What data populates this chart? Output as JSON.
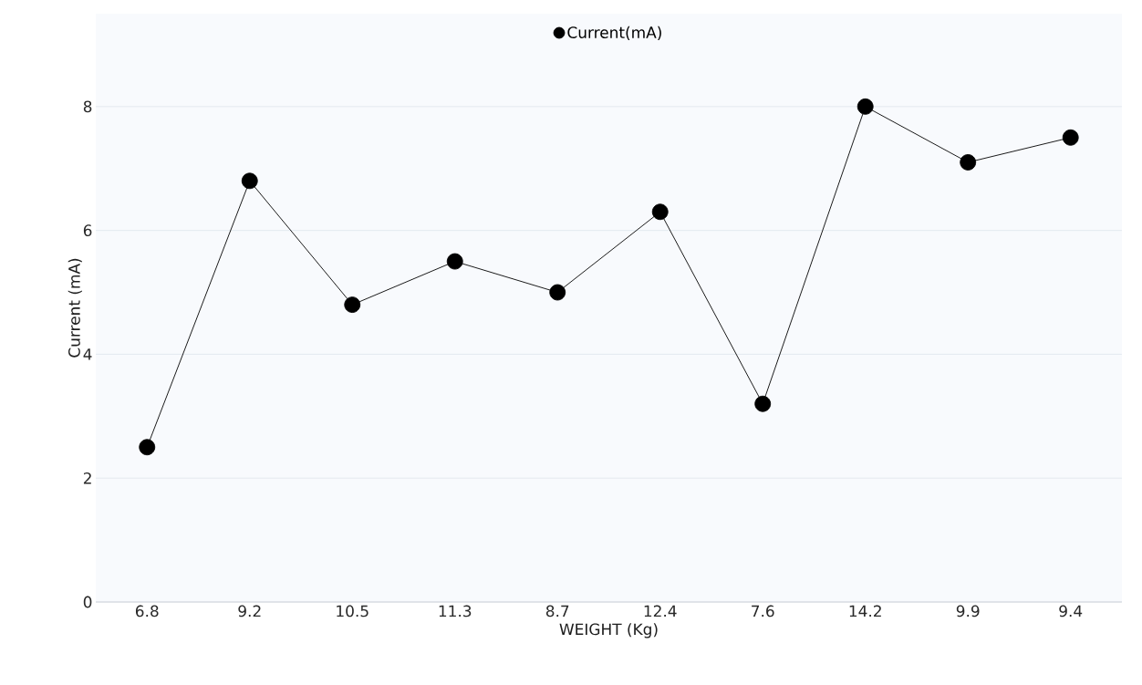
{
  "chart_data": {
    "type": "line",
    "xlabel": "WEIGHT (Kg)",
    "ylabel": "Current (mA)",
    "categories": [
      "6.8",
      "9.2",
      "10.5",
      "11.3",
      "8.7",
      "12.4",
      "7.6",
      "14.2",
      "9.9",
      "9.4"
    ],
    "series": [
      {
        "name": "Current(mA)",
        "color": "#000000",
        "values": [
          2.5,
          6.8,
          4.8,
          5.5,
          5.0,
          6.3,
          3.2,
          8.0,
          7.1,
          7.5
        ]
      }
    ],
    "ylim": [
      0,
      9.5
    ],
    "yticks": [
      0,
      2,
      4,
      6,
      8
    ],
    "grid": "y",
    "legend": "top",
    "marker": "circle",
    "line_style": "solid"
  }
}
